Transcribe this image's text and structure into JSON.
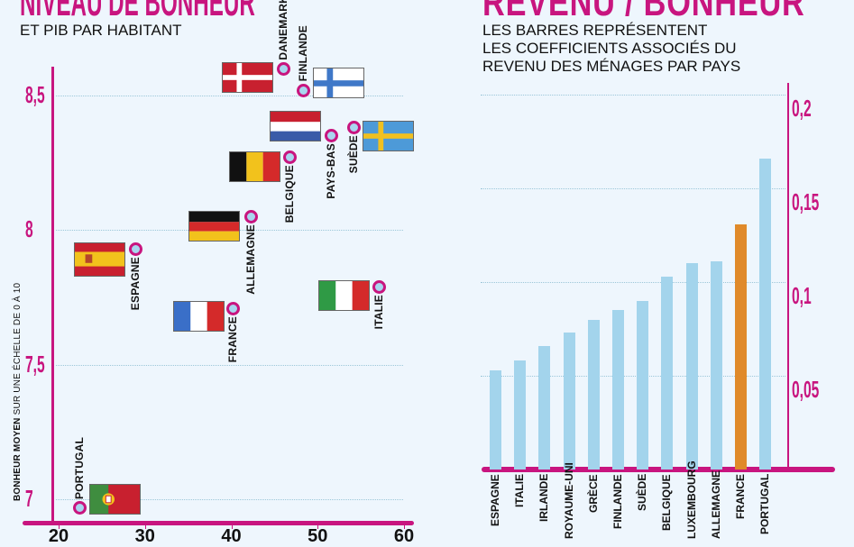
{
  "chart_data": [
    {
      "type": "scatter",
      "title": "NIVEAU DE BONHEUR",
      "subtitle": "ET PIB PAR HABITANT",
      "ylabel_bold": "BONHEUR MOYEN",
      "ylabel_rest": " SUR UNE ÉCHELLE DE 0 À 10",
      "xlabel": "",
      "xlim": [
        20,
        60
      ],
      "ylim": [
        7,
        8.5
      ],
      "xticks": [
        "20",
        "30",
        "40",
        "50",
        "60"
      ],
      "yticks": [
        "7",
        "7,5",
        "8",
        "8,5"
      ],
      "points": [
        {
          "label": "DANEMARK",
          "code": "dk",
          "x": 46,
          "y": 8.6
        },
        {
          "label": "FINLANDE",
          "code": "fi",
          "x": 48.3,
          "y": 8.52
        },
        {
          "label": "PAYS-BAS",
          "code": "nl",
          "x": 51.5,
          "y": 8.35
        },
        {
          "label": "SUÈDE",
          "code": "se",
          "x": 54.1,
          "y": 8.38
        },
        {
          "label": "BELGIQUE",
          "code": "be",
          "x": 46.7,
          "y": 8.27
        },
        {
          "label": "ALLEMAGNE",
          "code": "de",
          "x": 42.2,
          "y": 8.05
        },
        {
          "label": "ESPAGNE",
          "code": "es",
          "x": 28.9,
          "y": 7.93
        },
        {
          "label": "FRANCE",
          "code": "fr",
          "x": 40.2,
          "y": 7.71
        },
        {
          "label": "ITALIE",
          "code": "it",
          "x": 57.1,
          "y": 7.79
        },
        {
          "label": "PORTUGAL",
          "code": "pt",
          "x": 22.4,
          "y": 6.97
        }
      ]
    },
    {
      "type": "bar",
      "title": "REVENU / BONHEUR",
      "subtitle_lines": [
        "LES BARRES REPRÉSENTENT",
        "LES COEFFICIENTS ASSOCIÉS DU",
        "REVENU DES MÉNAGES PAR PAYS"
      ],
      "ylim": [
        0,
        0.2
      ],
      "yticks": [
        "0,05",
        "0,1",
        "0,15",
        "0,2"
      ],
      "categories": [
        "ESPAGNE",
        "ITALIE",
        "IRLANDE",
        "ROYAUME-UNI",
        "GRÈCE",
        "FINLANDE",
        "SUÈDE",
        "BELGIQUE",
        "LUXEMBOURG",
        "ALLEMAGNE",
        "FRANCE",
        "PORTUGAL"
      ],
      "values": [
        0.053,
        0.058,
        0.066,
        0.073,
        0.08,
        0.085,
        0.09,
        0.103,
        0.11,
        0.111,
        0.131,
        0.166
      ],
      "highlight": "FRANCE",
      "colors": {
        "bar": "#a3d4ec",
        "highlight": "#e08a2a",
        "axis": "#c8157f"
      }
    }
  ]
}
